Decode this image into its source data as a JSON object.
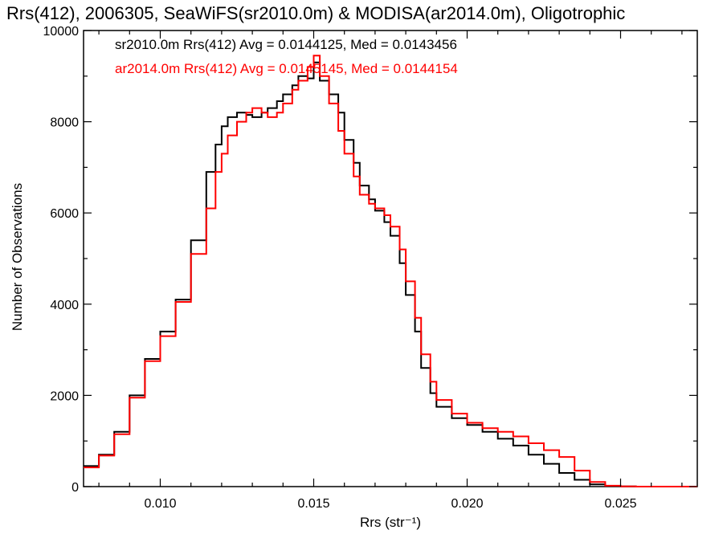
{
  "chart_data": {
    "type": "line",
    "title": "Rrs(412), 2006305, SeaWiFS(sr2010.0m) & MODISA(ar2014.0m), Oligotrophic",
    "xlabel": "Rrs (str⁻¹)",
    "ylabel": "Number of Observations",
    "xlim": [
      0.0075,
      0.0275
    ],
    "ylim": [
      0,
      10000
    ],
    "xticks": [
      {
        "value": 0.01,
        "label": "0.010"
      },
      {
        "value": 0.015,
        "label": "0.015"
      },
      {
        "value": 0.02,
        "label": "0.020"
      },
      {
        "value": 0.025,
        "label": "0.025"
      }
    ],
    "yticks": [
      {
        "value": 0,
        "label": "0"
      },
      {
        "value": 2000,
        "label": "2000"
      },
      {
        "value": 4000,
        "label": "4000"
      },
      {
        "value": 6000,
        "label": "6000"
      },
      {
        "value": 8000,
        "label": "8000"
      },
      {
        "value": 10000,
        "label": "10000"
      }
    ],
    "grid": false,
    "legend_placement": "top-left",
    "step_histogram": true,
    "series": [
      {
        "name": "sr2010.0m",
        "legend": "sr2010.0m Rrs(412) Avg = 0.0144125, Med = 0.0143456",
        "color": "#000000",
        "x": [
          0.0075,
          0.008,
          0.0085,
          0.009,
          0.0095,
          0.01,
          0.0105,
          0.011,
          0.0115,
          0.0118,
          0.012,
          0.0122,
          0.0125,
          0.0128,
          0.013,
          0.0133,
          0.0135,
          0.0138,
          0.014,
          0.0143,
          0.0145,
          0.0148,
          0.015,
          0.0152,
          0.0155,
          0.0158,
          0.016,
          0.0163,
          0.0165,
          0.0168,
          0.017,
          0.0173,
          0.0175,
          0.0178,
          0.018,
          0.0183,
          0.0185,
          0.0188,
          0.019,
          0.0195,
          0.02,
          0.0205,
          0.021,
          0.0215,
          0.022,
          0.0225,
          0.023,
          0.0235,
          0.024,
          0.0245,
          0.025,
          0.0255,
          0.026,
          0.0265,
          0.027,
          0.0275
        ],
        "y": [
          450,
          700,
          1200,
          2000,
          2800,
          3400,
          4100,
          5400,
          6900,
          7500,
          7900,
          8100,
          8200,
          8150,
          8100,
          8200,
          8300,
          8450,
          8600,
          8800,
          9000,
          8950,
          9300,
          8900,
          8600,
          8200,
          7600,
          7100,
          6600,
          6300,
          6050,
          5800,
          5500,
          4900,
          4200,
          3400,
          2600,
          2050,
          1750,
          1500,
          1350,
          1200,
          1050,
          900,
          700,
          500,
          300,
          150,
          50,
          10,
          5,
          0,
          0,
          0,
          0,
          0
        ]
      },
      {
        "name": "ar2014.0m",
        "legend": "ar2014.0m Rrs(412) Avg = 0.0145145, Med = 0.0144154",
        "color": "#ff0000",
        "x": [
          0.0075,
          0.008,
          0.0085,
          0.009,
          0.0095,
          0.01,
          0.0105,
          0.011,
          0.0115,
          0.0118,
          0.012,
          0.0122,
          0.0125,
          0.0128,
          0.013,
          0.0133,
          0.0135,
          0.0138,
          0.014,
          0.0143,
          0.0145,
          0.0148,
          0.015,
          0.0152,
          0.0155,
          0.0158,
          0.016,
          0.0163,
          0.0165,
          0.0168,
          0.017,
          0.0173,
          0.0175,
          0.0178,
          0.018,
          0.0183,
          0.0185,
          0.0188,
          0.019,
          0.0195,
          0.02,
          0.0205,
          0.021,
          0.0215,
          0.022,
          0.0225,
          0.023,
          0.0235,
          0.024,
          0.0245,
          0.025,
          0.0255,
          0.026,
          0.0265,
          0.027,
          0.0275
        ],
        "y": [
          420,
          680,
          1150,
          1950,
          2750,
          3300,
          4050,
          5100,
          6100,
          6900,
          7300,
          7700,
          8000,
          8200,
          8300,
          8200,
          8100,
          8200,
          8400,
          8700,
          8900,
          9200,
          9450,
          9000,
          8400,
          7800,
          7300,
          6800,
          6400,
          6200,
          6100,
          5950,
          5700,
          5200,
          4500,
          3700,
          2900,
          2300,
          1900,
          1600,
          1400,
          1280,
          1200,
          1100,
          950,
          800,
          650,
          350,
          100,
          20,
          5,
          0,
          0,
          0,
          0,
          0
        ]
      }
    ]
  }
}
